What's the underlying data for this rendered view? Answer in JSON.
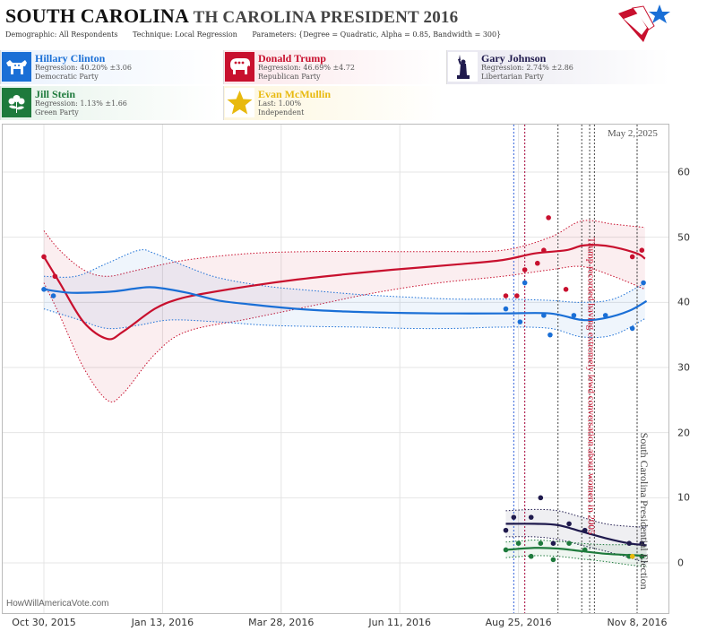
{
  "header": {
    "title_main": "SOUTH CAROLINA",
    "title_sub": "TH CAROLINA PRESIDENT 2016",
    "demographic": "Demographic: All Respondents",
    "technique": "Technique: Local Regression",
    "parameters": "Parameters: {Degree = Quadratic, Alpha = 0.85, Bandwidth = 300}"
  },
  "candidates": [
    {
      "name": "Hillary Clinton",
      "line1": "Regression: 40.20% ±3.06",
      "line2": "Democratic Party",
      "color": "#1a6fd6",
      "icon": "donkey-icon"
    },
    {
      "name": "Donald Trump",
      "line1": "Regression: 46.69% ±4.72",
      "line2": "Republican Party",
      "color": "#c8102e",
      "icon": "elephant-icon"
    },
    {
      "name": "Gary Johnson",
      "line1": "Regression: 2.74% ±2.86",
      "line2": "Libertarian Party",
      "color": "#1f1a4d",
      "icon": "liberty-statue-icon"
    },
    {
      "name": "Jill Stein",
      "line1": "Regression: 1.13% ±1.66",
      "line2": "Green Party",
      "color": "#1e7a3c",
      "icon": "flower-icon"
    },
    {
      "name": "Evan McMullin",
      "line1": "Last: 1.00%",
      "line2": "Independent",
      "color": "#e8b90e",
      "icon": "star-icon"
    }
  ],
  "footer": {
    "watermark": "HowWillAmericaVote.com",
    "date": "May 2, 2025"
  },
  "chart_data": {
    "type": "line",
    "x_ticks": [
      "Oct 30, 2015",
      "Jan 13, 2016",
      "Mar 28, 2016",
      "Jun 11, 2016",
      "Aug 25, 2016",
      "Nov 8, 2016"
    ],
    "y_ticks": [
      0,
      10,
      20,
      30,
      40,
      50,
      60
    ],
    "ylim": [
      -3,
      67
    ],
    "xlim_days": [
      -6,
      382
    ],
    "annotations": [
      {
        "text": "Trump recorded having extremely lewd conversation about women in 2005",
        "day": 342
      },
      {
        "text": "South Carolina Presidential Election",
        "day": 375
      }
    ],
    "event_lines": [
      {
        "day": 297,
        "color": "#1a4fd6"
      },
      {
        "day": 304,
        "color": "#1a4fd6"
      },
      {
        "day": 304,
        "color": "#c8102e"
      },
      {
        "day": 325,
        "color": "#333333"
      },
      {
        "day": 340,
        "color": "#333333"
      },
      {
        "day": 345,
        "color": "#333333"
      },
      {
        "day": 348,
        "color": "#333333"
      },
      {
        "day": 375,
        "color": "#333333"
      }
    ],
    "series": [
      {
        "name": "Donald Trump",
        "color": "#c8102e",
        "trend": [
          [
            0,
            47
          ],
          [
            10,
            43
          ],
          [
            25,
            37
          ],
          [
            40,
            34.4
          ],
          [
            50,
            35.5
          ],
          [
            70,
            39
          ],
          [
            85,
            40.5
          ],
          [
            100,
            41.3
          ],
          [
            130,
            42.5
          ],
          [
            160,
            43.5
          ],
          [
            190,
            44.3
          ],
          [
            220,
            45
          ],
          [
            260,
            45.8
          ],
          [
            290,
            46.5
          ],
          [
            310,
            47.5
          ],
          [
            330,
            48
          ],
          [
            340,
            48.7
          ],
          [
            350,
            48.8
          ],
          [
            360,
            48.5
          ],
          [
            375,
            47.5
          ],
          [
            380,
            46.7
          ]
        ],
        "upper": [
          [
            0,
            51
          ],
          [
            10,
            48
          ],
          [
            25,
            45
          ],
          [
            40,
            44
          ],
          [
            60,
            45
          ],
          [
            90,
            46.5
          ],
          [
            130,
            47.5
          ],
          [
            170,
            47.8
          ],
          [
            210,
            47.8
          ],
          [
            250,
            47.8
          ],
          [
            290,
            48
          ],
          [
            320,
            50
          ],
          [
            340,
            52.5
          ],
          [
            360,
            52
          ],
          [
            380,
            51.5
          ]
        ],
        "lower": [
          [
            0,
            43
          ],
          [
            10,
            38
          ],
          [
            25,
            30
          ],
          [
            40,
            25
          ],
          [
            50,
            26
          ],
          [
            70,
            32
          ],
          [
            90,
            35.5
          ],
          [
            130,
            37.5
          ],
          [
            170,
            39.5
          ],
          [
            210,
            41.5
          ],
          [
            250,
            43
          ],
          [
            290,
            44
          ],
          [
            320,
            45
          ],
          [
            340,
            45.5
          ],
          [
            360,
            44
          ],
          [
            380,
            42
          ]
        ],
        "points": [
          [
            0,
            47
          ],
          [
            7,
            44
          ],
          [
            292,
            41
          ],
          [
            299,
            41
          ],
          [
            304,
            45
          ],
          [
            312,
            46
          ],
          [
            316,
            48
          ],
          [
            319,
            53
          ],
          [
            330,
            42
          ],
          [
            372,
            47
          ],
          [
            378,
            48
          ]
        ]
      },
      {
        "name": "Hillary Clinton",
        "color": "#1a6fd6",
        "trend": [
          [
            0,
            42
          ],
          [
            15,
            41.5
          ],
          [
            30,
            41.5
          ],
          [
            45,
            41.7
          ],
          [
            60,
            42.2
          ],
          [
            70,
            42.3
          ],
          [
            90,
            41.5
          ],
          [
            110,
            40.3
          ],
          [
            130,
            39.7
          ],
          [
            160,
            39
          ],
          [
            190,
            38.6
          ],
          [
            220,
            38.4
          ],
          [
            250,
            38.3
          ],
          [
            290,
            38.3
          ],
          [
            320,
            38.3
          ],
          [
            340,
            37.3
          ],
          [
            355,
            37.6
          ],
          [
            370,
            38.7
          ],
          [
            381,
            40.2
          ]
        ],
        "upper": [
          [
            0,
            44
          ],
          [
            20,
            44
          ],
          [
            40,
            46
          ],
          [
            60,
            48
          ],
          [
            70,
            47.5
          ],
          [
            90,
            45.5
          ],
          [
            110,
            43.8
          ],
          [
            140,
            42.5
          ],
          [
            170,
            41.8
          ],
          [
            200,
            41.2
          ],
          [
            230,
            40.8
          ],
          [
            260,
            40.5
          ],
          [
            290,
            40.5
          ],
          [
            320,
            40.3
          ],
          [
            340,
            40
          ],
          [
            360,
            40.5
          ],
          [
            380,
            43
          ]
        ],
        "lower": [
          [
            0,
            39
          ],
          [
            20,
            37.5
          ],
          [
            40,
            36
          ],
          [
            60,
            36.5
          ],
          [
            80,
            37.3
          ],
          [
            110,
            37
          ],
          [
            140,
            36.5
          ],
          [
            170,
            36.3
          ],
          [
            200,
            36.2
          ],
          [
            230,
            36
          ],
          [
            260,
            36
          ],
          [
            290,
            36.2
          ],
          [
            320,
            36
          ],
          [
            340,
            34.7
          ],
          [
            360,
            35
          ],
          [
            380,
            37.5
          ]
        ],
        "points": [
          [
            0,
            42
          ],
          [
            6,
            41
          ],
          [
            292,
            39
          ],
          [
            301,
            37
          ],
          [
            304,
            43
          ],
          [
            316,
            38
          ],
          [
            320,
            35
          ],
          [
            335,
            38
          ],
          [
            355,
            38
          ],
          [
            372,
            36
          ],
          [
            379,
            43
          ]
        ]
      },
      {
        "name": "Gary Johnson",
        "color": "#1f1a4d",
        "trend": [
          [
            292,
            6
          ],
          [
            310,
            6
          ],
          [
            325,
            5.8
          ],
          [
            340,
            4.8
          ],
          [
            355,
            3.8
          ],
          [
            370,
            3
          ],
          [
            381,
            2.7
          ]
        ],
        "upper": [
          [
            292,
            8
          ],
          [
            310,
            8.2
          ],
          [
            325,
            8
          ],
          [
            340,
            7
          ],
          [
            355,
            6
          ],
          [
            370,
            5.6
          ],
          [
            381,
            5.5
          ]
        ],
        "lower": [
          [
            292,
            4
          ],
          [
            310,
            4
          ],
          [
            325,
            3.6
          ],
          [
            340,
            2.7
          ],
          [
            355,
            1.8
          ],
          [
            370,
            0.8
          ],
          [
            381,
            0
          ]
        ],
        "points": [
          [
            292,
            5
          ],
          [
            297,
            7
          ],
          [
            308,
            7
          ],
          [
            314,
            10
          ],
          [
            322,
            3
          ],
          [
            332,
            6
          ],
          [
            342,
            5
          ],
          [
            370,
            3
          ],
          [
            378,
            3
          ]
        ]
      },
      {
        "name": "Jill Stein",
        "color": "#1e7a3c",
        "trend": [
          [
            292,
            2
          ],
          [
            310,
            2.3
          ],
          [
            325,
            2.2
          ],
          [
            340,
            1.8
          ],
          [
            355,
            1.4
          ],
          [
            370,
            1.2
          ],
          [
            381,
            1.1
          ]
        ],
        "upper": [
          [
            292,
            3.2
          ],
          [
            310,
            3.5
          ],
          [
            325,
            3.3
          ],
          [
            340,
            3
          ],
          [
            355,
            2.8
          ],
          [
            370,
            2.8
          ],
          [
            381,
            2.8
          ]
        ],
        "lower": [
          [
            292,
            0.8
          ],
          [
            310,
            1.1
          ],
          [
            325,
            1
          ],
          [
            340,
            0.6
          ],
          [
            355,
            0.2
          ],
          [
            370,
            -0.3
          ],
          [
            381,
            -0.6
          ]
        ],
        "points": [
          [
            292,
            2
          ],
          [
            300,
            3
          ],
          [
            308,
            1
          ],
          [
            314,
            3
          ],
          [
            322,
            0.5
          ],
          [
            332,
            3
          ],
          [
            342,
            2
          ],
          [
            370,
            1
          ],
          [
            378,
            1
          ]
        ]
      },
      {
        "name": "Evan McMullin",
        "color": "#e8b90e",
        "trend": [],
        "upper": [],
        "lower": [],
        "points": [
          [
            372,
            1
          ]
        ]
      }
    ]
  }
}
